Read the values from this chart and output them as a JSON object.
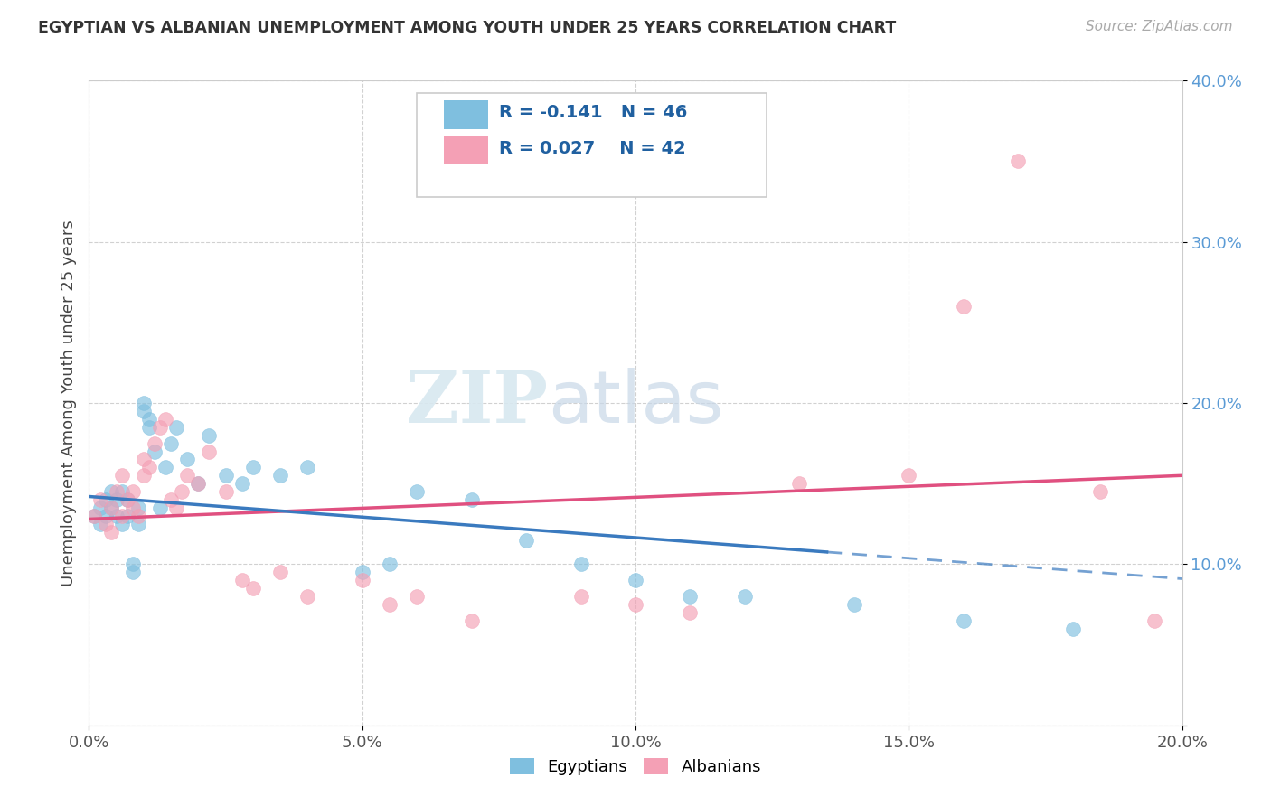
{
  "title": "EGYPTIAN VS ALBANIAN UNEMPLOYMENT AMONG YOUTH UNDER 25 YEARS CORRELATION CHART",
  "source_text": "Source: ZipAtlas.com",
  "ylabel": "Unemployment Among Youth under 25 years",
  "xlabel": "",
  "xlim": [
    0.0,
    0.2
  ],
  "ylim": [
    0.0,
    0.4
  ],
  "xticks": [
    0.0,
    0.05,
    0.1,
    0.15,
    0.2
  ],
  "yticks": [
    0.0,
    0.1,
    0.2,
    0.3,
    0.4
  ],
  "egyptians_color": "#7fbfdf",
  "albanians_color": "#f4a0b5",
  "trend_blue": "#3a7abf",
  "trend_pink": "#e05080",
  "R_egypt": -0.141,
  "N_egypt": 46,
  "R_albania": 0.027,
  "N_albania": 42,
  "legend_labels": [
    "Egyptians",
    "Albanians"
  ],
  "watermark": "ZIPatlas",
  "egyptians_x": [
    0.001,
    0.002,
    0.002,
    0.003,
    0.003,
    0.004,
    0.004,
    0.005,
    0.005,
    0.006,
    0.006,
    0.007,
    0.007,
    0.008,
    0.008,
    0.009,
    0.009,
    0.01,
    0.01,
    0.011,
    0.011,
    0.012,
    0.013,
    0.014,
    0.015,
    0.016,
    0.018,
    0.02,
    0.022,
    0.025,
    0.028,
    0.03,
    0.035,
    0.04,
    0.05,
    0.055,
    0.06,
    0.07,
    0.08,
    0.09,
    0.1,
    0.11,
    0.12,
    0.14,
    0.16,
    0.18
  ],
  "egyptians_y": [
    0.13,
    0.125,
    0.135,
    0.14,
    0.13,
    0.135,
    0.145,
    0.14,
    0.13,
    0.125,
    0.145,
    0.13,
    0.14,
    0.095,
    0.1,
    0.135,
    0.125,
    0.195,
    0.2,
    0.19,
    0.185,
    0.17,
    0.135,
    0.16,
    0.175,
    0.185,
    0.165,
    0.15,
    0.18,
    0.155,
    0.15,
    0.16,
    0.155,
    0.16,
    0.095,
    0.1,
    0.145,
    0.14,
    0.115,
    0.1,
    0.09,
    0.08,
    0.08,
    0.075,
    0.065,
    0.06
  ],
  "albanians_x": [
    0.001,
    0.002,
    0.003,
    0.004,
    0.004,
    0.005,
    0.006,
    0.006,
    0.007,
    0.008,
    0.008,
    0.009,
    0.01,
    0.01,
    0.011,
    0.012,
    0.013,
    0.014,
    0.015,
    0.016,
    0.017,
    0.018,
    0.02,
    0.022,
    0.025,
    0.028,
    0.03,
    0.035,
    0.04,
    0.05,
    0.055,
    0.06,
    0.07,
    0.09,
    0.1,
    0.11,
    0.13,
    0.15,
    0.16,
    0.17,
    0.185,
    0.195
  ],
  "albanians_y": [
    0.13,
    0.14,
    0.125,
    0.12,
    0.135,
    0.145,
    0.155,
    0.13,
    0.14,
    0.135,
    0.145,
    0.13,
    0.155,
    0.165,
    0.16,
    0.175,
    0.185,
    0.19,
    0.14,
    0.135,
    0.145,
    0.155,
    0.15,
    0.17,
    0.145,
    0.09,
    0.085,
    0.095,
    0.08,
    0.09,
    0.075,
    0.08,
    0.065,
    0.08,
    0.075,
    0.07,
    0.15,
    0.155,
    0.26,
    0.35,
    0.145,
    0.065
  ],
  "egypt_trend_x": [
    0.0,
    0.145
  ],
  "egypt_trend_y_start": 0.142,
  "egypt_trend_y_end": 0.105,
  "albania_trend_x": [
    0.0,
    0.2
  ],
  "albania_trend_y_start": 0.128,
  "albania_trend_y_end": 0.155
}
